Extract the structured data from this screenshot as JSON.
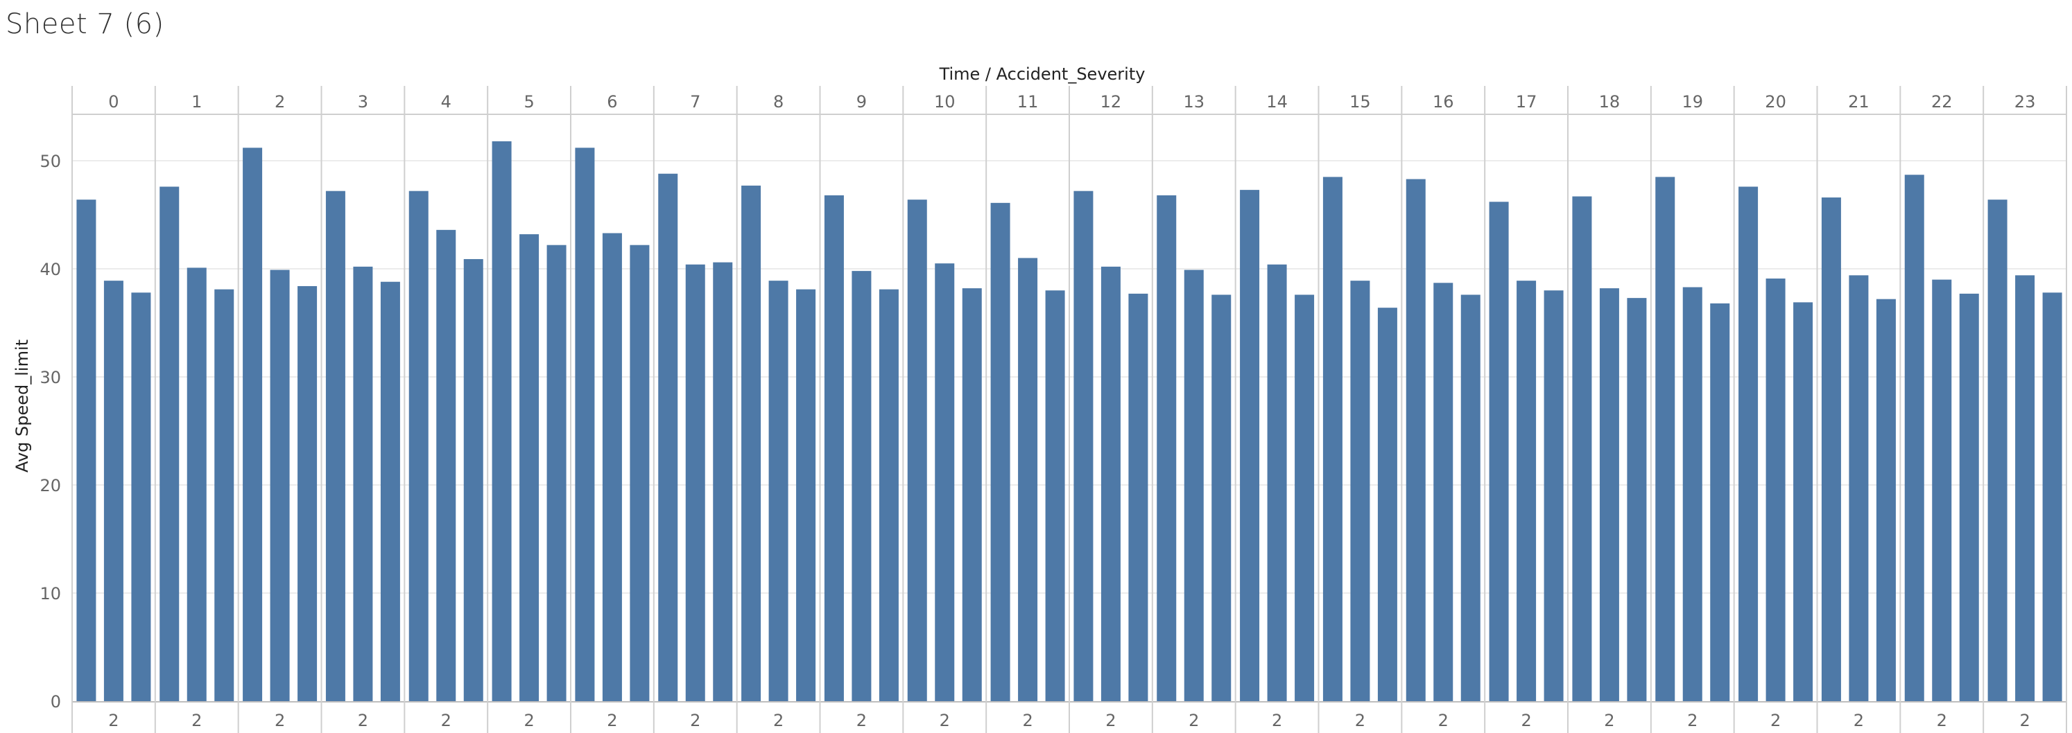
{
  "sheet": {
    "title": "Sheet 7 (6)"
  },
  "colors": {
    "bar": "#4e79a7",
    "divider": "#cfcfcf",
    "grid": "#ececec"
  },
  "chart_data": {
    "type": "bar",
    "title": "Time / Accident_Severity",
    "ylabel": "Avg Speed_limit",
    "ylim": [
      0,
      55
    ],
    "yticks": [
      0,
      10,
      20,
      30,
      40,
      50
    ],
    "grid": true,
    "legend": "none",
    "panels": [
      {
        "time": "0",
        "bottom_label": "2",
        "values": [
          46.4,
          38.9,
          37.8
        ]
      },
      {
        "time": "1",
        "bottom_label": "2",
        "values": [
          47.6,
          40.1,
          38.1
        ]
      },
      {
        "time": "2",
        "bottom_label": "2",
        "values": [
          51.2,
          39.9,
          38.4
        ]
      },
      {
        "time": "3",
        "bottom_label": "2",
        "values": [
          47.2,
          40.2,
          38.8
        ]
      },
      {
        "time": "4",
        "bottom_label": "2",
        "values": [
          47.2,
          43.6,
          40.9
        ]
      },
      {
        "time": "5",
        "bottom_label": "2",
        "values": [
          51.8,
          43.2,
          42.2
        ]
      },
      {
        "time": "6",
        "bottom_label": "2",
        "values": [
          51.2,
          43.3,
          42.2
        ]
      },
      {
        "time": "7",
        "bottom_label": "2",
        "values": [
          48.8,
          40.4,
          40.6
        ]
      },
      {
        "time": "8",
        "bottom_label": "2",
        "values": [
          47.7,
          38.9,
          38.1
        ]
      },
      {
        "time": "9",
        "bottom_label": "2",
        "values": [
          46.8,
          39.8,
          38.1
        ]
      },
      {
        "time": "10",
        "bottom_label": "2",
        "values": [
          46.4,
          40.5,
          38.2
        ]
      },
      {
        "time": "11",
        "bottom_label": "2",
        "values": [
          46.1,
          41.0,
          38.0
        ]
      },
      {
        "time": "12",
        "bottom_label": "2",
        "values": [
          47.2,
          40.2,
          37.7
        ]
      },
      {
        "time": "13",
        "bottom_label": "2",
        "values": [
          46.8,
          39.9,
          37.6
        ]
      },
      {
        "time": "14",
        "bottom_label": "2",
        "values": [
          47.3,
          40.4,
          37.6
        ]
      },
      {
        "time": "15",
        "bottom_label": "2",
        "values": [
          48.5,
          38.9,
          36.4
        ]
      },
      {
        "time": "16",
        "bottom_label": "2",
        "values": [
          48.3,
          38.7,
          37.6
        ]
      },
      {
        "time": "17",
        "bottom_label": "2",
        "values": [
          46.2,
          38.9,
          38.0
        ]
      },
      {
        "time": "18",
        "bottom_label": "2",
        "values": [
          46.7,
          38.2,
          37.3
        ]
      },
      {
        "time": "19",
        "bottom_label": "2",
        "values": [
          48.5,
          38.3,
          36.8
        ]
      },
      {
        "time": "20",
        "bottom_label": "2",
        "values": [
          47.6,
          39.1,
          36.9
        ]
      },
      {
        "time": "21",
        "bottom_label": "2",
        "values": [
          46.6,
          39.4,
          37.2
        ]
      },
      {
        "time": "22",
        "bottom_label": "2",
        "values": [
          48.7,
          39.0,
          37.7
        ]
      },
      {
        "time": "23",
        "bottom_label": "2",
        "values": [
          46.4,
          39.4,
          37.8
        ]
      }
    ]
  }
}
